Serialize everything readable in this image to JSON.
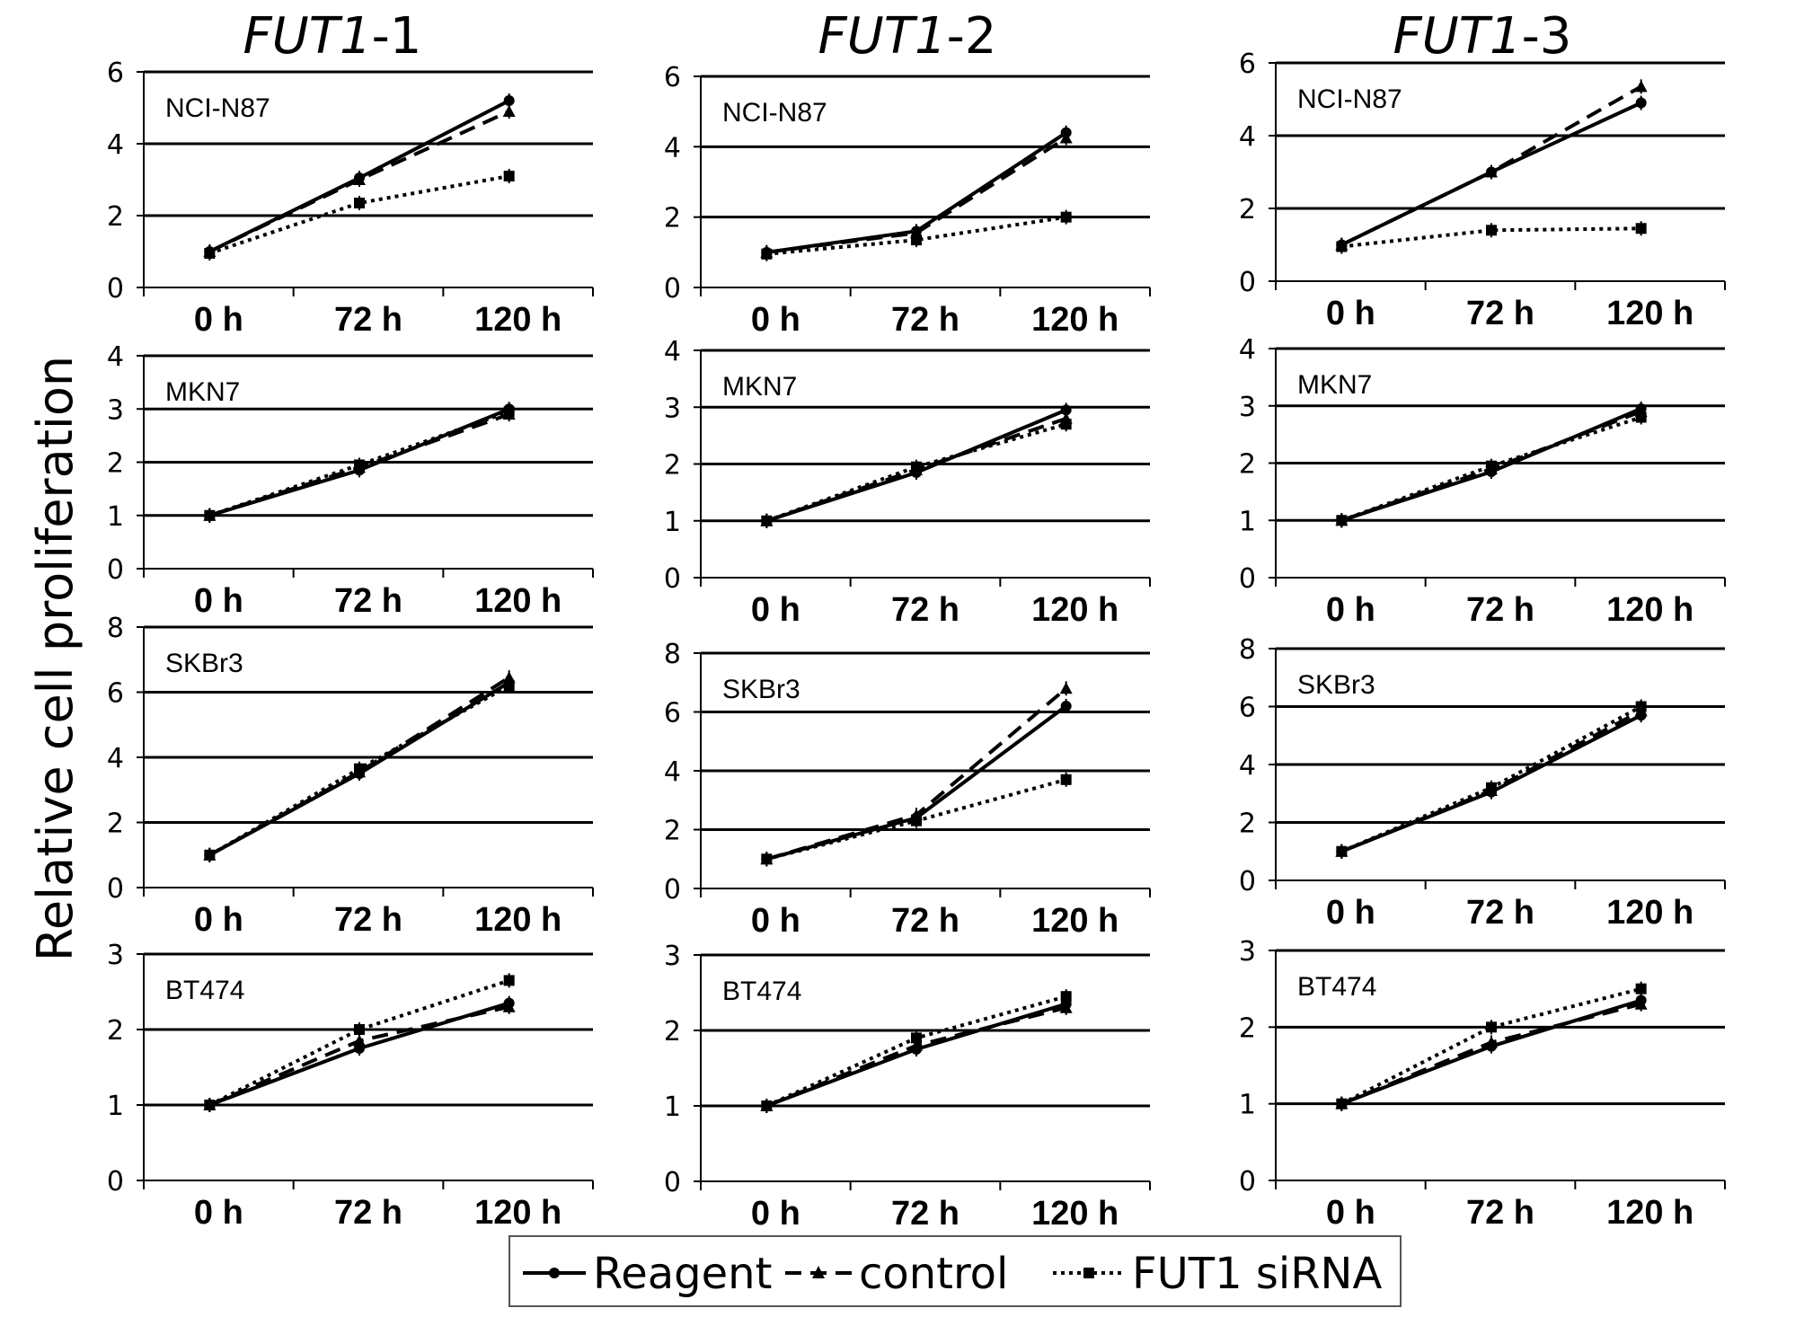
{
  "figure": {
    "ylabel": "Relative cell proliferation",
    "columns": [
      {
        "gene": "FUT1",
        "suffix": "-1"
      },
      {
        "gene": "FUT1",
        "suffix": "-2"
      },
      {
        "gene": "FUT1",
        "suffix": "-3"
      }
    ],
    "legend": {
      "reagent": "Reagent",
      "control": "control",
      "sirna": "FUT1 siRNA"
    }
  },
  "chart_data": [
    {
      "type": "line",
      "title": "FUT1-1",
      "cell_line": "NCI-N87",
      "categories": [
        "0 h",
        "72 h",
        "120 h"
      ],
      "ylim": [
        0,
        6
      ],
      "yticks": [
        0,
        2,
        4,
        6
      ],
      "grid": true,
      "series": [
        {
          "name": "Reagent",
          "values": [
            1,
            3.05,
            5.2
          ]
        },
        {
          "name": "control",
          "values": [
            1,
            3.0,
            4.9
          ]
        },
        {
          "name": "FUT1 siRNA",
          "values": [
            0.95,
            2.35,
            3.1
          ]
        }
      ]
    },
    {
      "type": "line",
      "title": "FUT1-2",
      "cell_line": "NCI-N87",
      "categories": [
        "0 h",
        "72 h",
        "120 h"
      ],
      "ylim": [
        0,
        6
      ],
      "yticks": [
        0,
        2,
        4,
        6
      ],
      "grid": true,
      "series": [
        {
          "name": "Reagent",
          "values": [
            1,
            1.6,
            4.4
          ]
        },
        {
          "name": "control",
          "values": [
            1,
            1.55,
            4.25
          ]
        },
        {
          "name": "FUT1 siRNA",
          "values": [
            0.95,
            1.35,
            2.0
          ]
        }
      ]
    },
    {
      "type": "line",
      "title": "FUT1-3",
      "cell_line": "NCI-N87",
      "categories": [
        "0 h",
        "72 h",
        "120 h"
      ],
      "ylim": [
        0,
        6
      ],
      "yticks": [
        0,
        2,
        4,
        6
      ],
      "grid": true,
      "series": [
        {
          "name": "Reagent",
          "values": [
            1,
            3.0,
            4.9
          ]
        },
        {
          "name": "control",
          "values": [
            1,
            3.0,
            5.35
          ]
        },
        {
          "name": "FUT1 siRNA",
          "values": [
            0.95,
            1.4,
            1.45
          ]
        }
      ]
    },
    {
      "type": "line",
      "title": "FUT1-1",
      "cell_line": "MKN7",
      "categories": [
        "0 h",
        "72 h",
        "120 h"
      ],
      "ylim": [
        0,
        4
      ],
      "yticks": [
        0,
        1,
        2,
        3,
        4
      ],
      "grid": true,
      "series": [
        {
          "name": "Reagent",
          "values": [
            1,
            1.85,
            3.0
          ]
        },
        {
          "name": "control",
          "values": [
            1,
            1.9,
            2.9
          ]
        },
        {
          "name": "FUT1 siRNA",
          "values": [
            1,
            1.95,
            2.95
          ]
        }
      ]
    },
    {
      "type": "line",
      "title": "FUT1-2",
      "cell_line": "MKN7",
      "categories": [
        "0 h",
        "72 h",
        "120 h"
      ],
      "ylim": [
        0,
        4
      ],
      "yticks": [
        0,
        1,
        2,
        3,
        4
      ],
      "grid": true,
      "series": [
        {
          "name": "Reagent",
          "values": [
            1,
            1.85,
            2.95
          ]
        },
        {
          "name": "control",
          "values": [
            1,
            1.9,
            2.8
          ]
        },
        {
          "name": "FUT1 siRNA",
          "values": [
            1,
            1.95,
            2.7
          ]
        }
      ]
    },
    {
      "type": "line",
      "title": "FUT1-3",
      "cell_line": "MKN7",
      "categories": [
        "0 h",
        "72 h",
        "120 h"
      ],
      "ylim": [
        0,
        4
      ],
      "yticks": [
        0,
        1,
        2,
        3,
        4
      ],
      "grid": true,
      "series": [
        {
          "name": "Reagent",
          "values": [
            1,
            1.85,
            2.95
          ]
        },
        {
          "name": "control",
          "values": [
            1,
            1.9,
            2.9
          ]
        },
        {
          "name": "FUT1 siRNA",
          "values": [
            1,
            1.95,
            2.8
          ]
        }
      ]
    },
    {
      "type": "line",
      "title": "FUT1-1",
      "cell_line": "SKBr3",
      "categories": [
        "0 h",
        "72 h",
        "120 h"
      ],
      "ylim": [
        0,
        8
      ],
      "yticks": [
        0,
        2,
        4,
        6,
        8
      ],
      "grid": true,
      "series": [
        {
          "name": "Reagent",
          "values": [
            1,
            3.5,
            6.3
          ]
        },
        {
          "name": "control",
          "values": [
            1,
            3.55,
            6.45
          ]
        },
        {
          "name": "FUT1 siRNA",
          "values": [
            1,
            3.65,
            6.2
          ]
        }
      ]
    },
    {
      "type": "line",
      "title": "FUT1-2",
      "cell_line": "SKBr3",
      "categories": [
        "0 h",
        "72 h",
        "120 h"
      ],
      "ylim": [
        0,
        8
      ],
      "yticks": [
        0,
        2,
        4,
        6,
        8
      ],
      "grid": true,
      "series": [
        {
          "name": "Reagent",
          "values": [
            1,
            2.4,
            6.2
          ]
        },
        {
          "name": "control",
          "values": [
            1,
            2.5,
            6.8
          ]
        },
        {
          "name": "FUT1 siRNA",
          "values": [
            1,
            2.3,
            3.7
          ]
        }
      ]
    },
    {
      "type": "line",
      "title": "FUT1-3",
      "cell_line": "SKBr3",
      "categories": [
        "0 h",
        "72 h",
        "120 h"
      ],
      "ylim": [
        0,
        8
      ],
      "yticks": [
        0,
        2,
        4,
        6,
        8
      ],
      "grid": true,
      "series": [
        {
          "name": "Reagent",
          "values": [
            1,
            3.05,
            5.7
          ]
        },
        {
          "name": "control",
          "values": [
            1,
            3.1,
            5.85
          ]
        },
        {
          "name": "FUT1 siRNA",
          "values": [
            1,
            3.2,
            6.0
          ]
        }
      ]
    },
    {
      "type": "line",
      "title": "FUT1-1",
      "cell_line": "BT474",
      "categories": [
        "0 h",
        "72 h",
        "120 h"
      ],
      "ylim": [
        0,
        3
      ],
      "yticks": [
        0,
        1,
        2,
        3
      ],
      "grid": true,
      "series": [
        {
          "name": "Reagent",
          "values": [
            1,
            1.75,
            2.35
          ]
        },
        {
          "name": "control",
          "values": [
            1,
            1.85,
            2.3
          ]
        },
        {
          "name": "FUT1 siRNA",
          "values": [
            1,
            2.0,
            2.65
          ]
        }
      ]
    },
    {
      "type": "line",
      "title": "FUT1-2",
      "cell_line": "BT474",
      "categories": [
        "0 h",
        "72 h",
        "120 h"
      ],
      "ylim": [
        0,
        3
      ],
      "yticks": [
        0,
        1,
        2,
        3
      ],
      "grid": true,
      "series": [
        {
          "name": "Reagent",
          "values": [
            1,
            1.75,
            2.35
          ]
        },
        {
          "name": "control",
          "values": [
            1,
            1.8,
            2.3
          ]
        },
        {
          "name": "FUT1 siRNA",
          "values": [
            1,
            1.9,
            2.45
          ]
        }
      ]
    },
    {
      "type": "line",
      "title": "FUT1-3",
      "cell_line": "BT474",
      "categories": [
        "0 h",
        "72 h",
        "120 h"
      ],
      "ylim": [
        0,
        3
      ],
      "yticks": [
        0,
        1,
        2,
        3
      ],
      "grid": true,
      "series": [
        {
          "name": "Reagent",
          "values": [
            1,
            1.75,
            2.35
          ]
        },
        {
          "name": "control",
          "values": [
            1,
            1.8,
            2.3
          ]
        },
        {
          "name": "FUT1 siRNA",
          "values": [
            1,
            2.0,
            2.5
          ]
        }
      ]
    }
  ]
}
